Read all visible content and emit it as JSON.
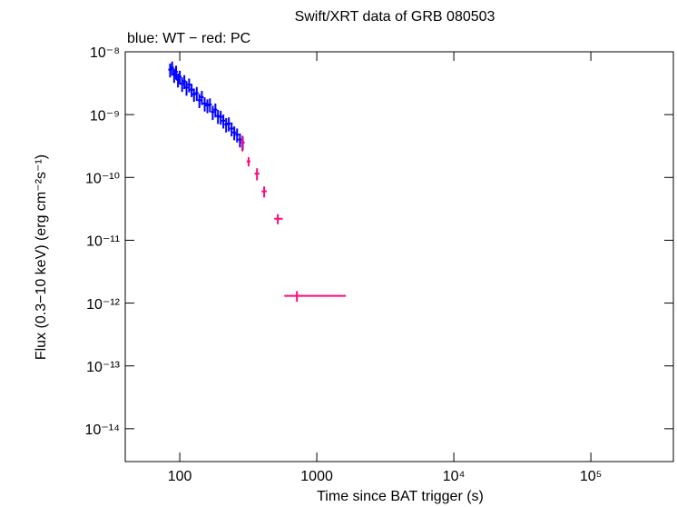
{
  "chart_data": {
    "type": "scatter",
    "title": "Swift/XRT data of GRB 080503",
    "subtitle": "blue: WT − red: PC",
    "x_label": "Time since BAT trigger (s)",
    "y_label": "Flux (0.3−10 keV) (erg cm⁻²s⁻¹)",
    "log_x": true,
    "log_y": true,
    "xlim": [
      40,
      400000
    ],
    "ylim": [
      3e-15,
      1e-08
    ],
    "xticks": [
      100,
      1000,
      {
        "value": 10000,
        "label": "10⁴"
      },
      {
        "value": 100000,
        "label": "10⁵"
      }
    ],
    "yticks": [
      {
        "value": 1e-08,
        "label": "10⁻⁸"
      },
      {
        "value": 1e-09,
        "label": "10⁻⁹"
      },
      {
        "value": 1e-10,
        "label": "10⁻¹⁰"
      },
      {
        "value": 1e-11,
        "label": "10⁻¹¹"
      },
      {
        "value": 1e-12,
        "label": "10⁻¹²"
      },
      {
        "value": 1e-13,
        "label": "10⁻¹³"
      },
      {
        "value": 1e-14,
        "label": "10⁻¹⁴"
      }
    ],
    "series": [
      {
        "name": "WT",
        "color": "#0000ff",
        "x": [
          85,
          88,
          91,
          94,
          97,
          100,
          104,
          108,
          112,
          117,
          122,
          127,
          133,
          139,
          145,
          152,
          159,
          166,
          174,
          182,
          190,
          199,
          208,
          218,
          228,
          239,
          250,
          262,
          275,
          288
        ],
        "values": [
          5.2e-09,
          5.6e-09,
          4.3e-09,
          4.8e-09,
          3.6e-09,
          4e-09,
          3.1e-09,
          3.4e-09,
          2.7e-09,
          3e-09,
          2.5e-09,
          2.1e-09,
          2.2e-09,
          1.7e-09,
          1.9e-09,
          1.5e-09,
          1.4e-09,
          1.45e-09,
          1.1e-09,
          1.2e-09,
          9.5e-10,
          9.2e-10,
          8e-10,
          7e-10,
          7.2e-10,
          6e-10,
          5.2e-10,
          4.8e-10,
          4e-10,
          3.6e-10
        ],
        "y_err": [
          1.3e-09,
          1.4e-09,
          1.1e-09,
          1.2e-09,
          9e-10,
          1e-09,
          8e-10,
          8.5e-10,
          7e-10,
          7.5e-10,
          6e-10,
          5e-10,
          5.5e-10,
          4.3e-10,
          4.8e-10,
          3.8e-10,
          3.5e-10,
          3.6e-10,
          2.8e-10,
          3e-10,
          2.4e-10,
          2.3e-10,
          2e-10,
          1.8e-10,
          1.8e-10,
          1.5e-10,
          1.3e-10,
          1.2e-10,
          1e-10,
          9e-11
        ]
      },
      {
        "name": "PC",
        "color": "#ff0a7a",
        "x": [
          286,
          318,
          366,
          413,
          519,
          716
        ],
        "values": [
          3.6e-10,
          1.8e-10,
          1.15e-10,
          6e-11,
          2.2e-11,
          1.3e-12
        ],
        "y_err": [
          1e-10,
          3e-11,
          2.5e-11,
          1.2e-11,
          4e-12,
          2.5e-13
        ],
        "x_err": [
          [
            8,
            8
          ],
          [
            10,
            10
          ],
          [
            15,
            15
          ],
          [
            18,
            18
          ],
          [
            30,
            45
          ],
          [
            137,
            914
          ]
        ]
      }
    ]
  }
}
